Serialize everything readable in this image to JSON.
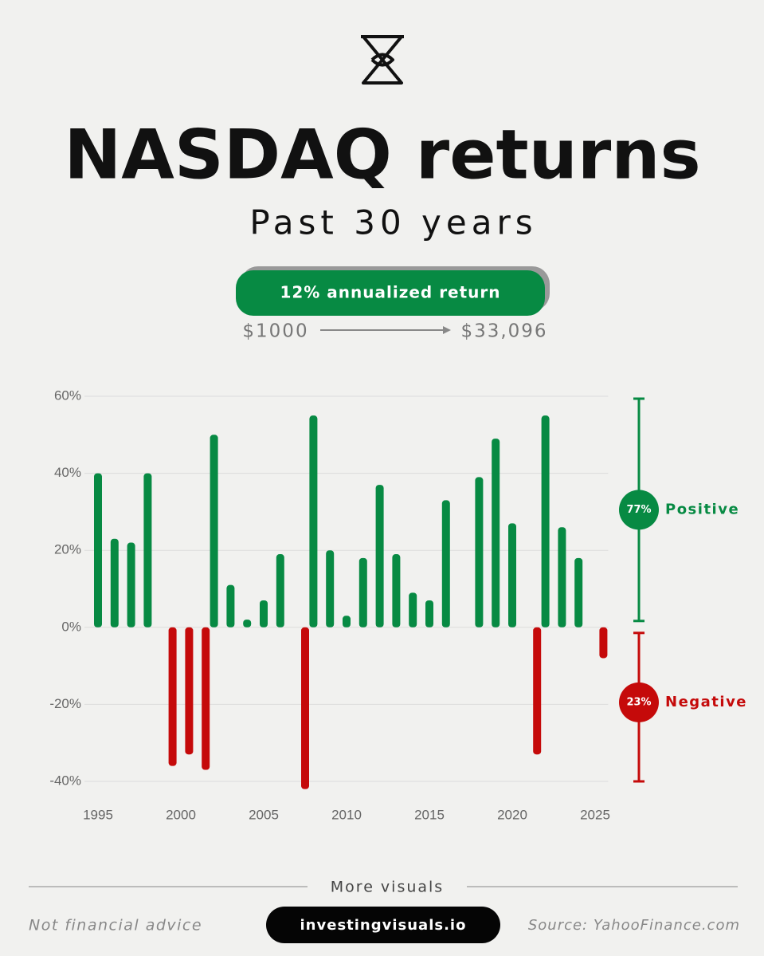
{
  "chart_data": {
    "type": "bar",
    "title": "NASDAQ returns",
    "subtitle": "Past 30 years",
    "badge": "12% annualized return",
    "growth": {
      "start": "$1000",
      "end": "$33,096"
    },
    "categories": [
      "1995",
      null,
      null,
      null,
      null,
      "2000",
      null,
      null,
      null,
      null,
      "2005",
      null,
      null,
      null,
      null,
      "2010",
      null,
      null,
      null,
      null,
      "2015",
      null,
      null,
      null,
      null,
      "2020",
      null,
      null,
      null,
      null,
      "2025"
    ],
    "values": [
      40,
      23,
      22,
      40,
      -36,
      -33,
      -37,
      50,
      11,
      2,
      7,
      19,
      -42,
      55,
      20,
      3,
      18,
      37,
      19,
      9,
      7,
      33,
      null,
      39,
      49,
      27,
      -33,
      55,
      26,
      18,
      -8
    ],
    "positive_color": "#078a43",
    "negative_color": "#c50a0a",
    "ylim": [
      -40,
      60
    ],
    "yticks": [
      {
        "value": -40,
        "label": "-40%"
      },
      {
        "value": -20,
        "label": "-20%"
      },
      {
        "value": 0,
        "label": "0%"
      },
      {
        "value": 20,
        "label": "20%"
      },
      {
        "value": 40,
        "label": "40%"
      },
      {
        "value": 60,
        "label": "60%"
      }
    ],
    "grid": true,
    "breakdown": [
      {
        "name": "Positive",
        "value": 77,
        "value_label": "77%",
        "color": "#078a43"
      },
      {
        "name": "Negative",
        "value": 23,
        "value_label": "23%",
        "color": "#c50a0a"
      }
    ]
  },
  "footer": {
    "more": "More visuals",
    "disclaimer": "Not financial advice",
    "site": "investingvisuals.io",
    "source": "Source: YahooFinance.com"
  }
}
